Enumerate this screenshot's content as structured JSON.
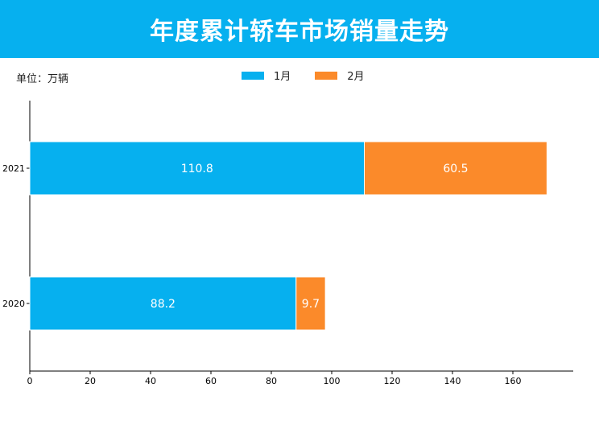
{
  "header": {
    "title": "年度累计轿车市场销量走势"
  },
  "unit_label": "单位：万辆",
  "colors": {
    "header_bg": "#06b0ef",
    "series1": "#06b0ef",
    "series2": "#fb8a2a"
  },
  "chart_data": {
    "type": "bar",
    "orientation": "horizontal",
    "stacked": true,
    "categories": [
      "2021",
      "2020"
    ],
    "series": [
      {
        "name": "1月",
        "values": [
          110.8,
          88.2
        ],
        "labels": [
          "110.8",
          "88.2"
        ],
        "color": "#06b0ef"
      },
      {
        "name": "2月",
        "values": [
          60.5,
          9.7
        ],
        "labels": [
          "60.5",
          "9.7"
        ],
        "color": "#fb8a2a"
      }
    ],
    "xlim": [
      0,
      180
    ],
    "xticks": [
      "0",
      "20",
      "40",
      "60",
      "80",
      "100",
      "120",
      "140",
      "160"
    ],
    "legend_position": "top-center",
    "grid": false
  }
}
